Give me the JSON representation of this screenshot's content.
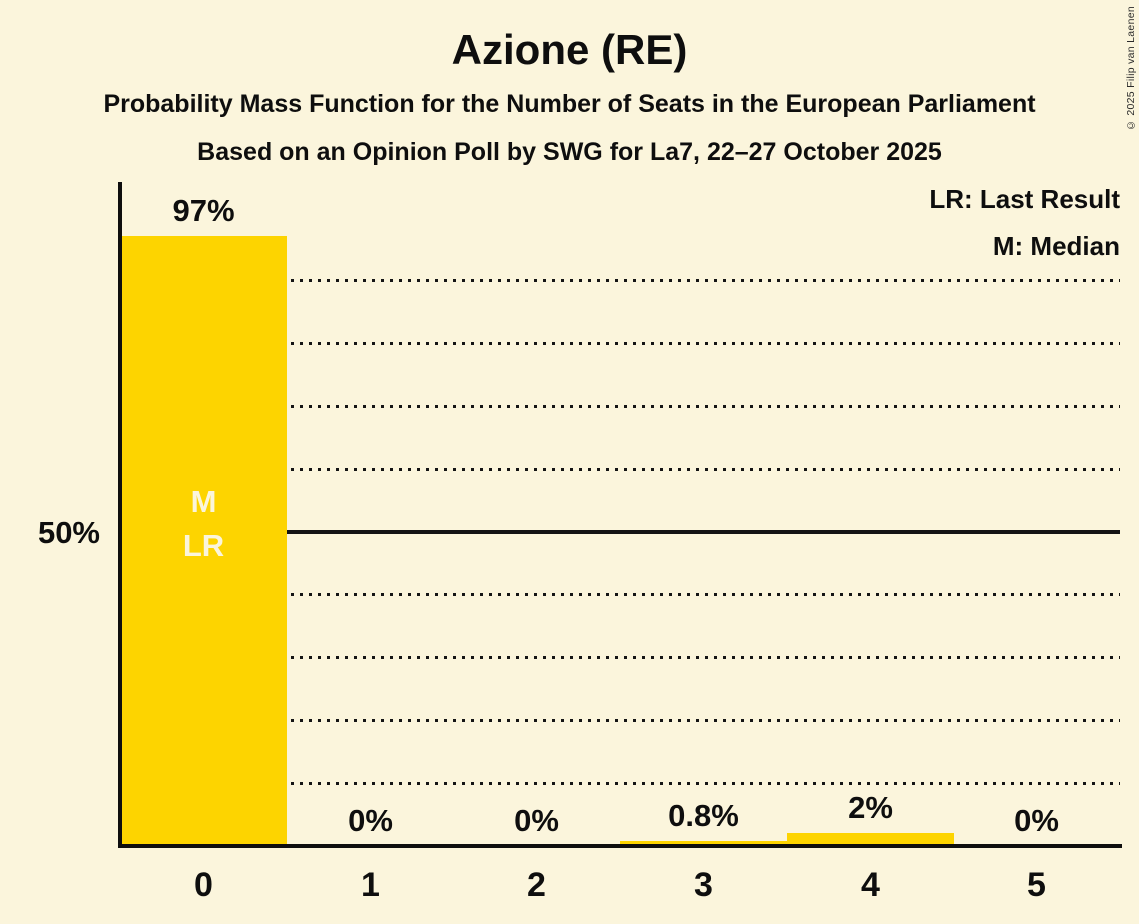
{
  "page": {
    "title": "Azione (RE)",
    "subtitle1": "Probability Mass Function for the Number of Seats in the European Parliament",
    "subtitle2": "Based on an Opinion Poll by SWG for La7, 22–27 October 2025",
    "copyright": "© 2025 Filip van Laenen"
  },
  "legend": {
    "items": [
      {
        "label": "LR: Last Result"
      },
      {
        "label": "M: Median"
      }
    ]
  },
  "chart_data": {
    "type": "bar",
    "title": "Azione (RE)",
    "categories": [
      "0",
      "1",
      "2",
      "3",
      "4",
      "5"
    ],
    "values": [
      97,
      0,
      0,
      0.8,
      2,
      0
    ],
    "value_labels": [
      "97%",
      "0%",
      "0%",
      "0.8%",
      "2%",
      "0%"
    ],
    "ylim": [
      0,
      100
    ],
    "ylabel_tick": "50%",
    "gridlines_pct": [
      10,
      20,
      30,
      40,
      60,
      70,
      80,
      90
    ],
    "solid_gridline_pct": 50,
    "grid_on": true,
    "legend_position": "top-right",
    "annotations": [
      {
        "category_index": 0,
        "lines": [
          "M",
          "LR"
        ]
      }
    ],
    "colors": {
      "bar": "#FDD400",
      "background": "#FBF5DC",
      "text": "#0E0E0E",
      "annotation_text": "#FBF5DC",
      "gridline": "#141414"
    }
  }
}
